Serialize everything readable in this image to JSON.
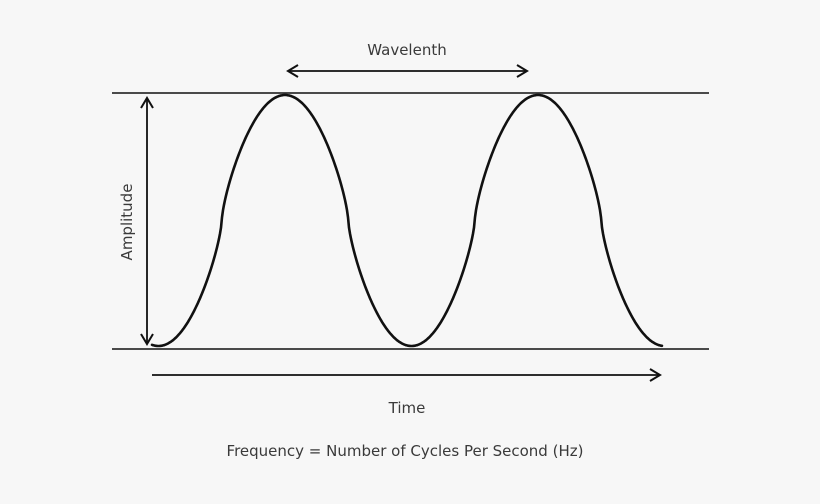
{
  "labels": {
    "wavelength": "Wavelenth",
    "amplitude": "Amplitude",
    "time": "Time",
    "frequency": "Frequency = Number of Cycles Per Second (Hz)"
  },
  "colors": {
    "background": "#f7f7f7",
    "line": "#111111",
    "text": "#3a3a3a"
  }
}
